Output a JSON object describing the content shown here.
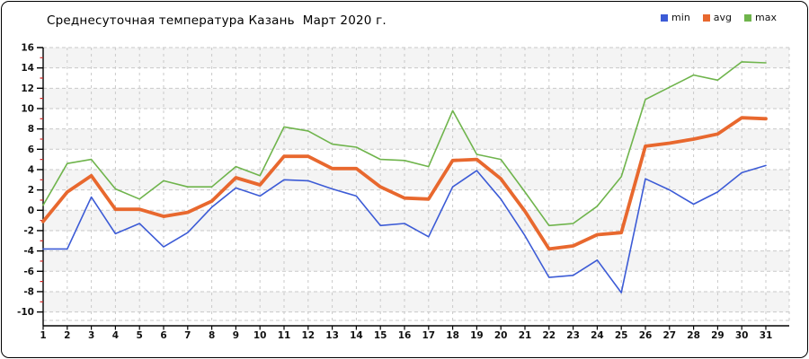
{
  "window": {
    "background": "#ffffff",
    "border_color": "#000000"
  },
  "chart_data": {
    "type": "line",
    "title": "Среднесуточная температура Казань  Март 2020 г.",
    "xlabel": "",
    "ylabel": "",
    "categories": [
      1,
      2,
      3,
      4,
      5,
      6,
      7,
      8,
      9,
      10,
      11,
      12,
      13,
      14,
      15,
      16,
      17,
      18,
      19,
      20,
      21,
      22,
      23,
      24,
      25,
      26,
      27,
      28,
      29,
      30,
      31
    ],
    "ylim": [
      -10,
      16
    ],
    "y_tick_step": 2,
    "y_minor_tick_step": 1,
    "grid": true,
    "grid_style": "dashed",
    "legend_position": "top-right",
    "series": [
      {
        "name": "min",
        "color": "#3c5bd6",
        "values": [
          -3.8,
          -3.8,
          1.3,
          -2.3,
          -1.3,
          -3.6,
          -2.2,
          0.3,
          2.2,
          1.4,
          3.0,
          2.9,
          2.1,
          1.4,
          -1.5,
          -1.3,
          -2.6,
          2.3,
          3.9,
          1.1,
          -2.5,
          -6.6,
          -6.4,
          -4.9,
          -8.1,
          3.1,
          2.0,
          0.6,
          1.8,
          3.7,
          4.4
        ]
      },
      {
        "name": "avg",
        "color": "#e8682e",
        "values": [
          -1.1,
          1.8,
          3.4,
          0.1,
          0.1,
          -0.6,
          -0.2,
          0.9,
          3.2,
          2.5,
          5.3,
          5.3,
          4.1,
          4.1,
          2.3,
          1.2,
          1.1,
          4.9,
          5.0,
          3.1,
          -0.1,
          -3.8,
          -3.5,
          -2.4,
          -2.2,
          6.3,
          6.6,
          7.0,
          7.5,
          9.1,
          9.0
        ]
      },
      {
        "name": "max",
        "color": "#6fb44c",
        "values": [
          0.5,
          4.6,
          5.0,
          2.1,
          1.1,
          2.9,
          2.3,
          2.3,
          4.3,
          3.4,
          8.2,
          7.8,
          6.5,
          6.2,
          5.0,
          4.9,
          4.3,
          9.8,
          5.5,
          5.0,
          1.8,
          -1.5,
          -1.3,
          0.4,
          3.3,
          10.9,
          12.1,
          13.3,
          12.8,
          14.6,
          14.5
        ]
      }
    ],
    "colors": {
      "grid": "#c9c9c9",
      "band": "#f4f4f4",
      "axis": "#000000",
      "minor_tick": "#cc2222",
      "tick_label": "#111111"
    }
  }
}
